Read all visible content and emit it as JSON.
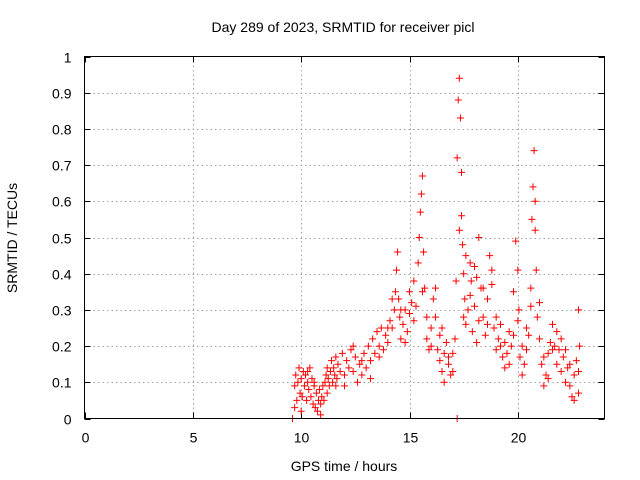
{
  "chart_data": {
    "type": "scatter",
    "title": "Day 289 of 2023, SRMTID for receiver picl",
    "xlabel": "GPS time / hours",
    "ylabel": "SRMTID / TECUs",
    "xlim": [
      0,
      24
    ],
    "ylim": [
      0,
      1
    ],
    "x_ticks": [
      "0",
      "5",
      "10",
      "15",
      "20"
    ],
    "y_ticks": [
      "0",
      "0.1",
      "0.2",
      "0.3",
      "0.4",
      "0.5",
      "0.6",
      "0.7",
      "0.8",
      "0.9",
      "1"
    ],
    "grid": true,
    "marker": "+",
    "color": "#ff0000",
    "series": [
      {
        "name": "SRMTID",
        "points": [
          [
            9.6,
            0.0
          ],
          [
            9.7,
            0.09
          ],
          [
            9.75,
            0.12
          ],
          [
            9.8,
            0.05
          ],
          [
            9.85,
            0.1
          ],
          [
            9.9,
            0.14
          ],
          [
            9.95,
            0.07
          ],
          [
            10.0,
            0.11
          ],
          [
            10.05,
            0.06
          ],
          [
            10.1,
            0.13
          ],
          [
            10.15,
            0.09
          ],
          [
            10.2,
            0.12
          ],
          [
            10.25,
            0.05
          ],
          [
            10.3,
            0.1
          ],
          [
            10.35,
            0.08
          ],
          [
            10.4,
            0.14
          ],
          [
            10.45,
            0.06
          ],
          [
            10.5,
            0.11
          ],
          [
            10.55,
            0.04
          ],
          [
            10.6,
            0.09
          ],
          [
            10.65,
            0.03
          ],
          [
            10.7,
            0.07
          ],
          [
            10.75,
            0.02
          ],
          [
            10.8,
            0.05
          ],
          [
            10.85,
            0.08
          ],
          [
            10.9,
            0.04
          ],
          [
            10.95,
            0.06
          ],
          [
            11.0,
            0.09
          ],
          [
            11.05,
            0.05
          ],
          [
            11.1,
            0.1
          ],
          [
            11.15,
            0.12
          ],
          [
            11.2,
            0.07
          ],
          [
            11.25,
            0.11
          ],
          [
            11.3,
            0.09
          ],
          [
            11.35,
            0.13
          ],
          [
            11.4,
            0.16
          ],
          [
            11.45,
            0.1
          ],
          [
            11.5,
            0.14
          ],
          [
            11.55,
            0.12
          ],
          [
            11.6,
            0.17
          ],
          [
            11.65,
            0.11
          ],
          [
            11.7,
            0.15
          ],
          [
            11.8,
            0.13
          ],
          [
            11.9,
            0.18
          ],
          [
            12.0,
            0.12
          ],
          [
            12.1,
            0.16
          ],
          [
            12.2,
            0.14
          ],
          [
            12.3,
            0.19
          ],
          [
            12.4,
            0.13
          ],
          [
            12.5,
            0.17
          ],
          [
            12.6,
            0.1
          ],
          [
            12.7,
            0.15
          ],
          [
            12.8,
            0.12
          ],
          [
            12.9,
            0.18
          ],
          [
            13.0,
            0.14
          ],
          [
            13.1,
            0.2
          ],
          [
            13.2,
            0.16
          ],
          [
            13.3,
            0.22
          ],
          [
            13.4,
            0.18
          ],
          [
            13.5,
            0.24
          ],
          [
            13.6,
            0.2
          ],
          [
            13.7,
            0.25
          ],
          [
            13.8,
            0.19
          ],
          [
            13.9,
            0.23
          ],
          [
            14.0,
            0.21
          ],
          [
            14.1,
            0.27
          ],
          [
            14.2,
            0.25
          ],
          [
            14.3,
            0.3
          ],
          [
            14.35,
            0.35
          ],
          [
            14.4,
            0.41
          ],
          [
            14.45,
            0.46
          ],
          [
            14.5,
            0.33
          ],
          [
            14.55,
            0.28
          ],
          [
            14.6,
            0.22
          ],
          [
            14.7,
            0.26
          ],
          [
            14.8,
            0.3
          ],
          [
            14.9,
            0.24
          ],
          [
            15.0,
            0.29
          ],
          [
            15.1,
            0.32
          ],
          [
            15.2,
            0.27
          ],
          [
            15.3,
            0.31
          ],
          [
            15.4,
            0.43
          ],
          [
            15.45,
            0.5
          ],
          [
            15.5,
            0.57
          ],
          [
            15.55,
            0.62
          ],
          [
            15.6,
            0.67
          ],
          [
            15.65,
            0.46
          ],
          [
            15.7,
            0.36
          ],
          [
            15.8,
            0.22
          ],
          [
            15.9,
            0.19
          ],
          [
            16.0,
            0.25
          ],
          [
            16.1,
            0.33
          ],
          [
            16.2,
            0.28
          ],
          [
            16.3,
            0.19
          ],
          [
            16.4,
            0.16
          ],
          [
            16.5,
            0.13
          ],
          [
            16.6,
            0.18
          ],
          [
            16.7,
            0.21
          ],
          [
            16.8,
            0.15
          ],
          [
            16.9,
            0.12
          ],
          [
            17.0,
            0.18
          ],
          [
            17.1,
            0.22
          ],
          [
            17.15,
            0.38
          ],
          [
            17.2,
            0.72
          ],
          [
            17.25,
            0.88
          ],
          [
            17.3,
            0.94
          ],
          [
            17.35,
            0.83
          ],
          [
            17.4,
            0.56
          ],
          [
            17.45,
            0.48
          ],
          [
            17.5,
            0.4
          ],
          [
            17.55,
            0.33
          ],
          [
            17.6,
            0.26
          ],
          [
            17.7,
            0.3
          ],
          [
            17.8,
            0.43
          ],
          [
            17.85,
            0.38
          ],
          [
            17.9,
            0.24
          ],
          [
            18.0,
            0.31
          ],
          [
            18.1,
            0.39
          ],
          [
            18.2,
            0.5
          ],
          [
            18.3,
            0.36
          ],
          [
            18.4,
            0.28
          ],
          [
            18.5,
            0.23
          ],
          [
            18.6,
            0.33
          ],
          [
            18.7,
            0.45
          ],
          [
            18.8,
            0.37
          ],
          [
            18.9,
            0.25
          ],
          [
            19.0,
            0.28
          ],
          [
            19.1,
            0.22
          ],
          [
            19.2,
            0.2
          ],
          [
            19.3,
            0.17
          ],
          [
            19.4,
            0.21
          ],
          [
            19.5,
            0.18
          ],
          [
            19.6,
            0.15
          ],
          [
            19.7,
            0.2
          ],
          [
            19.8,
            0.35
          ],
          [
            19.9,
            0.49
          ],
          [
            20.0,
            0.41
          ],
          [
            20.05,
            0.3
          ],
          [
            20.1,
            0.17
          ],
          [
            20.2,
            0.12
          ],
          [
            20.3,
            0.15
          ],
          [
            20.4,
            0.19
          ],
          [
            20.5,
            0.23
          ],
          [
            20.6,
            0.36
          ],
          [
            20.65,
            0.55
          ],
          [
            20.7,
            0.64
          ],
          [
            20.75,
            0.74
          ],
          [
            20.8,
            0.52
          ],
          [
            20.85,
            0.41
          ],
          [
            20.9,
            0.28
          ],
          [
            21.0,
            0.22
          ],
          [
            21.1,
            0.15
          ],
          [
            21.2,
            0.09
          ],
          [
            21.3,
            0.12
          ],
          [
            21.4,
            0.18
          ],
          [
            21.5,
            0.21
          ],
          [
            21.6,
            0.26
          ],
          [
            21.7,
            0.2
          ],
          [
            21.8,
            0.15
          ],
          [
            21.9,
            0.19
          ],
          [
            22.0,
            0.13
          ],
          [
            22.1,
            0.17
          ],
          [
            22.2,
            0.1
          ],
          [
            22.3,
            0.14
          ],
          [
            22.4,
            0.09
          ],
          [
            22.5,
            0.06
          ],
          [
            22.6,
            0.12
          ],
          [
            22.7,
            0.16
          ],
          [
            22.8,
            0.3
          ],
          [
            22.85,
            0.2
          ],
          [
            9.7,
            0.03
          ],
          [
            10.0,
            0.02
          ],
          [
            10.3,
            0.13
          ],
          [
            10.6,
            0.1
          ],
          [
            10.9,
            0.01
          ],
          [
            11.2,
            0.14
          ],
          [
            11.6,
            0.09
          ],
          [
            12.0,
            0.09
          ],
          [
            12.4,
            0.2
          ],
          [
            12.8,
            0.16
          ],
          [
            13.2,
            0.11
          ],
          [
            13.6,
            0.17
          ],
          [
            14.0,
            0.25
          ],
          [
            14.2,
            0.33
          ],
          [
            14.6,
            0.3
          ],
          [
            14.8,
            0.21
          ],
          [
            15.0,
            0.35
          ],
          [
            15.2,
            0.38
          ],
          [
            15.6,
            0.35
          ],
          [
            15.8,
            0.28
          ],
          [
            16.0,
            0.2
          ],
          [
            16.2,
            0.36
          ],
          [
            16.4,
            0.23
          ],
          [
            16.6,
            0.1
          ],
          [
            16.8,
            0.17
          ],
          [
            17.0,
            0.13
          ],
          [
            17.2,
            0.0
          ],
          [
            17.3,
            0.52
          ],
          [
            17.4,
            0.68
          ],
          [
            17.5,
            0.28
          ],
          [
            17.8,
            0.34
          ],
          [
            18.0,
            0.42
          ],
          [
            18.2,
            0.27
          ],
          [
            18.4,
            0.36
          ],
          [
            18.6,
            0.26
          ],
          [
            18.8,
            0.41
          ],
          [
            19.0,
            0.19
          ],
          [
            19.2,
            0.26
          ],
          [
            19.4,
            0.14
          ],
          [
            19.6,
            0.24
          ],
          [
            19.8,
            0.23
          ],
          [
            20.0,
            0.27
          ],
          [
            20.2,
            0.2
          ],
          [
            20.4,
            0.25
          ],
          [
            20.6,
            0.31
          ],
          [
            20.8,
            0.6
          ],
          [
            21.0,
            0.32
          ],
          [
            21.2,
            0.17
          ],
          [
            21.4,
            0.11
          ],
          [
            21.6,
            0.19
          ],
          [
            21.8,
            0.24
          ],
          [
            22.0,
            0.22
          ],
          [
            22.2,
            0.19
          ],
          [
            22.4,
            0.15
          ],
          [
            22.6,
            0.05
          ],
          [
            22.8,
            0.13
          ],
          [
            22.8,
            0.07
          ],
          [
            16.5,
            0.25
          ],
          [
            17.6,
            0.45
          ],
          [
            18.1,
            0.21
          ]
        ]
      }
    ]
  }
}
